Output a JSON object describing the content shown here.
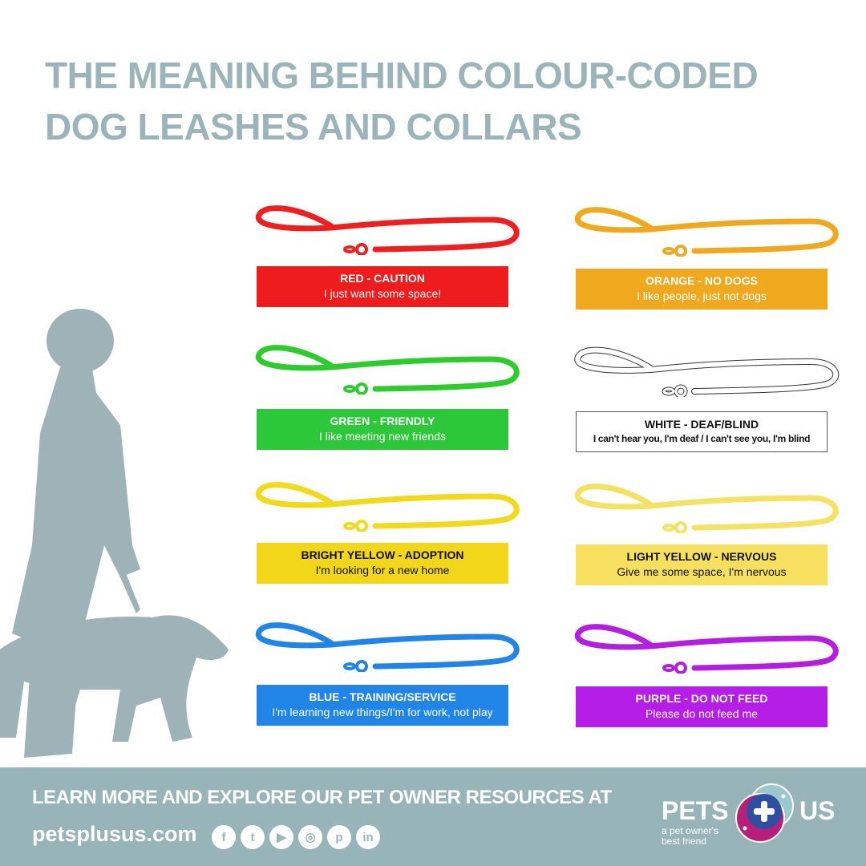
{
  "title": {
    "line1": "THE MEANING BEHIND COLOUR-CODED",
    "line2": "DOG LEASHES AND COLLARS"
  },
  "colors": {
    "title": "#9bb4b9",
    "footer": "#97b4b9",
    "silhouette": "#9db3b8"
  },
  "leashes": [
    {
      "heading": "RED - CAUTION",
      "text": "I just want some space!",
      "color": "#f01f1f",
      "label_bg": "#ee1c1c"
    },
    {
      "heading": "ORANGE - NO DOGS",
      "text": "I like people, just not dogs",
      "color": "#f0a81e",
      "label_bg": "#f0a81e"
    },
    {
      "heading": "GREEN - FRIENDLY",
      "text": "I like meeting new friends",
      "color": "#2dcc2d",
      "label_bg": "#2dc83a"
    },
    {
      "heading": "WHITE - DEAF/BLIND",
      "text": "I can't hear you, I'm deaf / I can't see you, I'm blind",
      "color": "#ffffff",
      "label_bg": "#ffffff"
    },
    {
      "heading": "BRIGHT YELLOW - ADOPTION",
      "text": "I'm looking for a new home",
      "color": "#f2d91a",
      "label_bg": "#f2d619"
    },
    {
      "heading": "LIGHT YELLOW - NERVOUS",
      "text": "Give me some space, I'm nervous",
      "color": "#f5e163",
      "label_bg": "#f7e060"
    },
    {
      "heading": "BLUE - TRAINING/SERVICE",
      "text": "I'm learning new things/I'm for work, not play",
      "color": "#2185e8",
      "label_bg": "#2185e8"
    },
    {
      "heading": "PURPLE - DO NOT FEED",
      "text": "Please do not feed me",
      "color": "#b41ee0",
      "label_bg": "#b41ee6"
    }
  ],
  "footer": {
    "cta": "LEARN MORE AND EXPLORE OUR PET OWNER RESOURCES AT",
    "url": "petsplusus.com",
    "social": [
      {
        "icon": "facebook-icon",
        "glyph": "f"
      },
      {
        "icon": "twitter-icon",
        "glyph": "t"
      },
      {
        "icon": "youtube-icon",
        "glyph": "▶"
      },
      {
        "icon": "instagram-icon",
        "glyph": "◎"
      },
      {
        "icon": "pinterest-icon",
        "glyph": "p"
      },
      {
        "icon": "linkedin-icon",
        "glyph": "in"
      }
    ],
    "logo": {
      "left": "PETS",
      "right": "US",
      "tagline_1": "a pet owner's",
      "tagline_2": "best friend"
    }
  }
}
